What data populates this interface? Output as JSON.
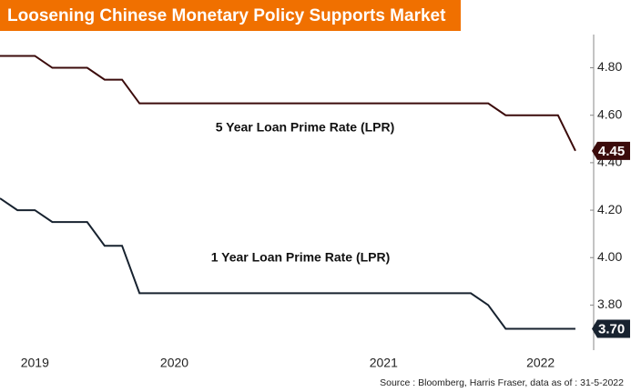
{
  "chart_data": {
    "type": "line",
    "title": "Loosening Chinese Monetary Policy Supports Market",
    "source": "Source : Bloomberg, Harris Fraser, data as of : 31-5-2022",
    "categories": [
      null,
      null,
      "2019",
      null,
      null,
      null,
      null,
      null,
      null,
      null,
      "2020",
      null,
      null,
      null,
      null,
      null,
      null,
      null,
      null,
      null,
      null,
      null,
      "2021",
      null,
      null,
      null,
      null,
      null,
      null,
      null,
      null,
      "2022",
      null,
      null
    ],
    "series": [
      {
        "name": "5 Year Loan Prime Rate (LPR)",
        "color": "#3b0b0b",
        "values": [
          4.85,
          4.85,
          4.85,
          4.8,
          4.8,
          4.8,
          4.75,
          4.75,
          4.65,
          4.65,
          4.65,
          4.65,
          4.65,
          4.65,
          4.65,
          4.65,
          4.65,
          4.65,
          4.65,
          4.65,
          4.65,
          4.65,
          4.65,
          4.65,
          4.65,
          4.65,
          4.65,
          4.65,
          4.65,
          4.6,
          4.6,
          4.6,
          4.6,
          4.45
        ],
        "value_labels": [
          null,
          null,
          null,
          null,
          null,
          null,
          null,
          null,
          null,
          null,
          null,
          null,
          null,
          null,
          null,
          null,
          null,
          null,
          null,
          null,
          null,
          null,
          null,
          null,
          null,
          null,
          null,
          null,
          null,
          null,
          null,
          null,
          null,
          "4.45"
        ]
      },
      {
        "name": "1 Year Loan Prime Rate (LPR)",
        "color": "#17222f",
        "values": [
          4.25,
          4.2,
          4.2,
          4.15,
          4.15,
          4.15,
          4.05,
          4.05,
          3.85,
          3.85,
          3.85,
          3.85,
          3.85,
          3.85,
          3.85,
          3.85,
          3.85,
          3.85,
          3.85,
          3.85,
          3.85,
          3.85,
          3.85,
          3.85,
          3.85,
          3.85,
          3.85,
          3.85,
          3.8,
          3.7,
          3.7,
          3.7,
          3.7,
          3.7
        ],
        "value_labels": [
          null,
          null,
          null,
          null,
          null,
          null,
          null,
          null,
          null,
          null,
          null,
          null,
          null,
          null,
          null,
          null,
          null,
          null,
          null,
          null,
          null,
          null,
          null,
          null,
          null,
          null,
          null,
          null,
          null,
          null,
          null,
          null,
          null,
          "3.70"
        ]
      }
    ],
    "ylim": [
      3.61,
      4.94
    ],
    "yticks": [
      {
        "value": 3.8,
        "label": "3.80"
      },
      {
        "value": 4.0,
        "label": "4.00"
      },
      {
        "value": 4.2,
        "label": "4.20"
      },
      {
        "value": 4.4,
        "label": "4.40"
      },
      {
        "value": 4.6,
        "label": "4.60"
      },
      {
        "value": 4.8,
        "label": "4.80"
      }
    ]
  }
}
